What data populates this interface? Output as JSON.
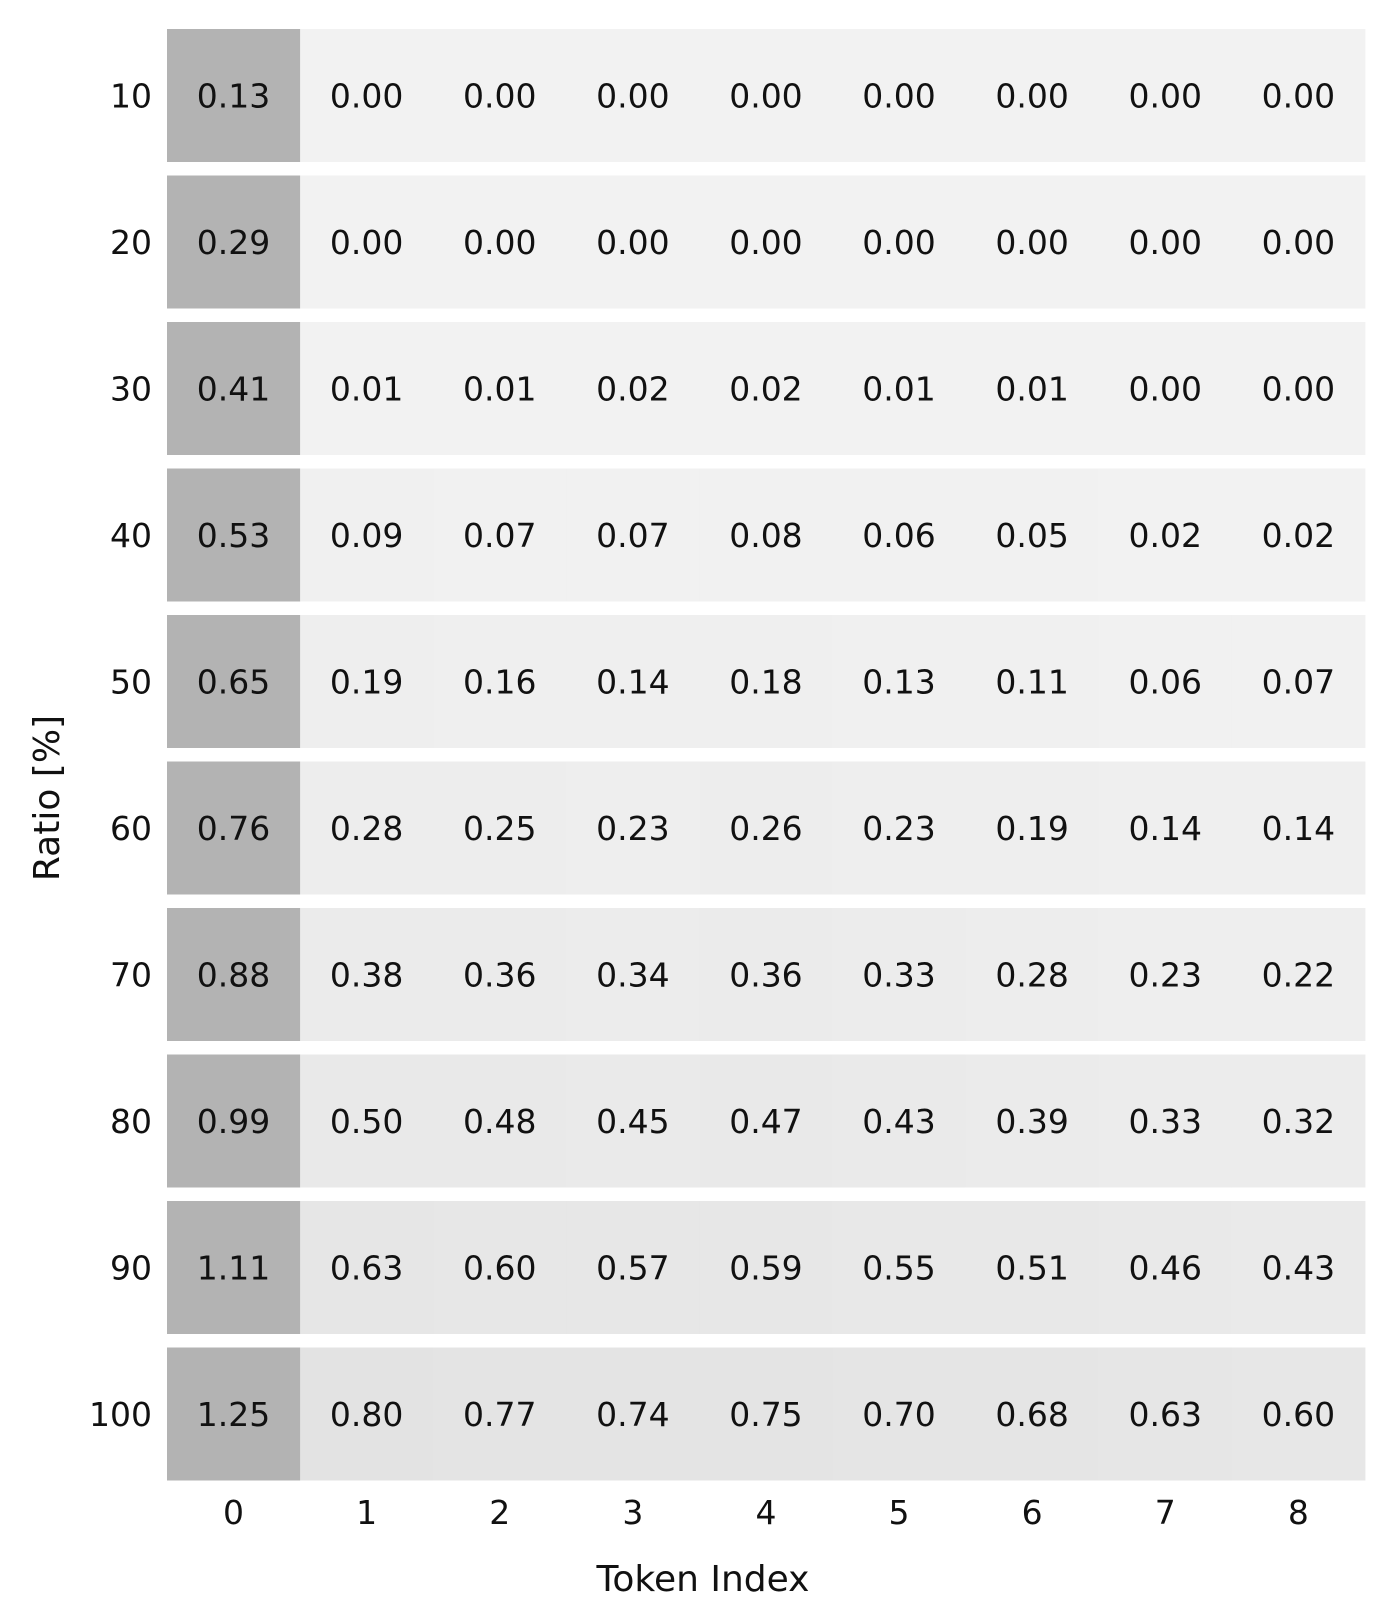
{
  "chart_data": {
    "type": "heatmap",
    "title": "",
    "xlabel": "Token Index",
    "ylabel": "Ratio [%]",
    "x_categories": [
      "0",
      "1",
      "2",
      "3",
      "4",
      "5",
      "6",
      "7",
      "8"
    ],
    "y_categories": [
      "10",
      "20",
      "30",
      "40",
      "50",
      "60",
      "70",
      "80",
      "90",
      "100"
    ],
    "values": [
      [
        0.13,
        0.0,
        0.0,
        0.0,
        0.0,
        0.0,
        0.0,
        0.0,
        0.0
      ],
      [
        0.29,
        0.0,
        0.0,
        0.0,
        0.0,
        0.0,
        0.0,
        0.0,
        0.0
      ],
      [
        0.41,
        0.01,
        0.01,
        0.02,
        0.02,
        0.01,
        0.01,
        0.0,
        0.0
      ],
      [
        0.53,
        0.09,
        0.07,
        0.07,
        0.08,
        0.06,
        0.05,
        0.02,
        0.02
      ],
      [
        0.65,
        0.19,
        0.16,
        0.14,
        0.18,
        0.13,
        0.11,
        0.06,
        0.07
      ],
      [
        0.76,
        0.28,
        0.25,
        0.23,
        0.26,
        0.23,
        0.19,
        0.14,
        0.14
      ],
      [
        0.88,
        0.38,
        0.36,
        0.34,
        0.36,
        0.33,
        0.28,
        0.23,
        0.22
      ],
      [
        0.99,
        0.5,
        0.48,
        0.45,
        0.47,
        0.43,
        0.39,
        0.33,
        0.32
      ],
      [
        1.11,
        0.63,
        0.6,
        0.57,
        0.59,
        0.55,
        0.51,
        0.46,
        0.43
      ],
      [
        1.25,
        0.8,
        0.77,
        0.74,
        0.75,
        0.7,
        0.68,
        0.63,
        0.6
      ]
    ],
    "value_labels": [
      [
        "0.13",
        "0.00",
        "0.00",
        "0.00",
        "0.00",
        "0.00",
        "0.00",
        "0.00",
        "0.00"
      ],
      [
        "0.29",
        "0.00",
        "0.00",
        "0.00",
        "0.00",
        "0.00",
        "0.00",
        "0.00",
        "0.00"
      ],
      [
        "0.41",
        "0.01",
        "0.01",
        "0.02",
        "0.02",
        "0.01",
        "0.01",
        "0.00",
        "0.00"
      ],
      [
        "0.53",
        "0.09",
        "0.07",
        "0.07",
        "0.08",
        "0.06",
        "0.05",
        "0.02",
        "0.02"
      ],
      [
        "0.65",
        "0.19",
        "0.16",
        "0.14",
        "0.18",
        "0.13",
        "0.11",
        "0.06",
        "0.07"
      ],
      [
        "0.76",
        "0.28",
        "0.25",
        "0.23",
        "0.26",
        "0.23",
        "0.19",
        "0.14",
        "0.14"
      ],
      [
        "0.88",
        "0.38",
        "0.36",
        "0.34",
        "0.36",
        "0.33",
        "0.28",
        "0.23",
        "0.22"
      ],
      [
        "0.99",
        "0.50",
        "0.48",
        "0.45",
        "0.47",
        "0.43",
        "0.39",
        "0.33",
        "0.32"
      ],
      [
        "1.11",
        "0.63",
        "0.60",
        "0.57",
        "0.59",
        "0.55",
        "0.51",
        "0.46",
        "0.43"
      ],
      [
        "1.25",
        "0.80",
        "0.77",
        "0.74",
        "0.75",
        "0.70",
        "0.68",
        "0.63",
        "0.60"
      ]
    ],
    "colors": {
      "column_0": "#b3b3b3",
      "cell_light": "#f2f2f2",
      "cell_dark": "#e3e3e3",
      "text": "#111111",
      "background": "#ffffff"
    },
    "grid": false,
    "legend": "none"
  }
}
